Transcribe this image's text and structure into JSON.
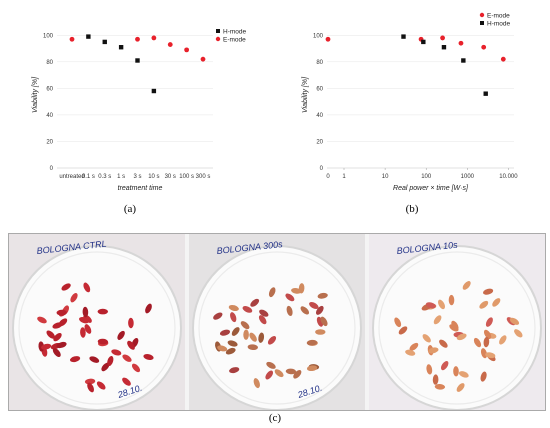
{
  "chart_data": [
    {
      "type": "scatter",
      "panel": "a",
      "xlabel": "treatment time",
      "ylabel": "Viability [%]",
      "categories": [
        "untreated",
        "0.1 s",
        "0.3 s",
        "1 s",
        "3 s",
        "10 s",
        "30 s",
        "100 s",
        "300 s"
      ],
      "ylim": [
        0,
        110
      ],
      "yticks": [
        0,
        20,
        40,
        60,
        80,
        100
      ],
      "legend_position": "top-right",
      "series": [
        {
          "name": "H-mode",
          "color": "#111111",
          "marker": "square",
          "points": [
            {
              "cat": "0.1 s",
              "y": 99
            },
            {
              "cat": "0.3 s",
              "y": 95
            },
            {
              "cat": "1 s",
              "y": 91
            },
            {
              "cat": "3 s",
              "y": 81
            },
            {
              "cat": "10 s",
              "y": 58
            }
          ]
        },
        {
          "name": "E-mode",
          "color": "#e8212b",
          "marker": "circle",
          "points": [
            {
              "cat": "untreated",
              "y": 97
            },
            {
              "cat": "3 s",
              "y": 97
            },
            {
              "cat": "10 s",
              "y": 98
            },
            {
              "cat": "30 s",
              "y": 93
            },
            {
              "cat": "100 s",
              "y": 89
            },
            {
              "cat": "300 s",
              "y": 82
            }
          ]
        }
      ]
    },
    {
      "type": "scatter",
      "panel": "b",
      "xlabel": "Real power × time [W·s]",
      "ylabel": "Viability [%]",
      "xscale": "log",
      "xticks": [
        0,
        1,
        10,
        100,
        1000,
        10000
      ],
      "xticklabels": [
        "0",
        "1",
        "10",
        "100",
        "1000",
        "10.000"
      ],
      "ylim": [
        0,
        110
      ],
      "yticks": [
        0,
        20,
        40,
        60,
        80,
        100
      ],
      "legend_position": "top-right",
      "series": [
        {
          "name": "E-mode",
          "color": "#e8212b",
          "marker": "circle",
          "points": [
            {
              "x": 0,
              "y": 97
            },
            {
              "x": 75,
              "y": 97
            },
            {
              "x": 250,
              "y": 98
            },
            {
              "x": 700,
              "y": 94
            },
            {
              "x": 2500,
              "y": 91
            },
            {
              "x": 7500,
              "y": 82
            }
          ]
        },
        {
          "name": "H-mode",
          "color": "#111111",
          "marker": "square",
          "points": [
            {
              "x": 28,
              "y": 99
            },
            {
              "x": 85,
              "y": 95
            },
            {
              "x": 270,
              "y": 91
            },
            {
              "x": 800,
              "y": 81
            },
            {
              "x": 2800,
              "y": 56
            }
          ]
        }
      ]
    }
  ],
  "figure": {
    "label_a": "(a)",
    "label_b": "(b)",
    "label_c": "(c)",
    "photos": [
      {
        "label": "BOLOGNA CTRL",
        "date": "28.10."
      },
      {
        "label": "BOLOGNA 300s",
        "date": "28.10."
      },
      {
        "label": "BOLOGNA 10s",
        "date": ""
      }
    ],
    "colors": {
      "h_mode": "#111111",
      "e_mode": "#e8212b"
    }
  }
}
